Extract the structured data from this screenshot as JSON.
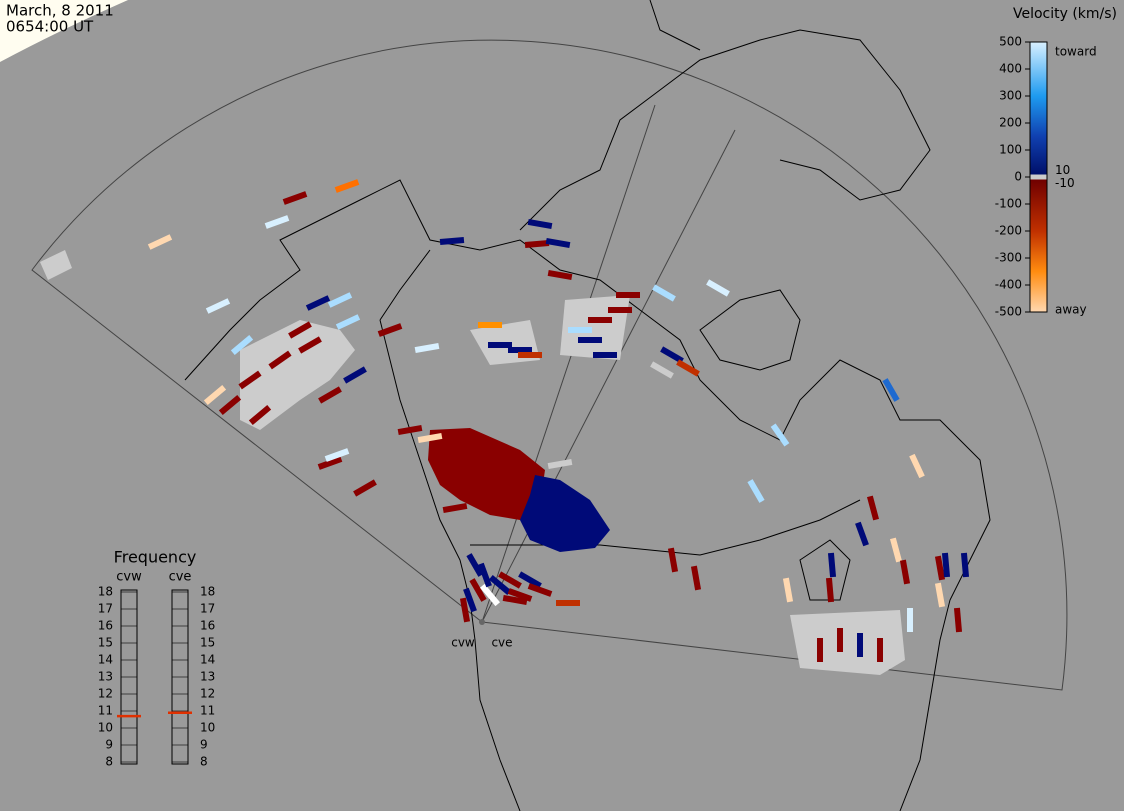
{
  "header": {
    "date": "March, 8 2011",
    "time": "0654:00 UT"
  },
  "velocity_scale": {
    "title": "Velocity (km/s)",
    "lim": [
      -500,
      500
    ],
    "ticks": [
      500,
      400,
      300,
      200,
      100,
      0,
      -100,
      -200,
      -300,
      -400,
      -500
    ],
    "inner_ticks": [
      10,
      -10
    ],
    "top_label": "toward",
    "bottom_label": "away"
  },
  "frequency": {
    "title": "Frequency",
    "lim": [
      8,
      18
    ],
    "ticks": [
      18,
      17,
      16,
      15,
      14,
      13,
      12,
      11,
      10,
      9,
      8
    ],
    "radars": [
      {
        "name": "cvw",
        "value": 10.7
      },
      {
        "name": "cve",
        "value": 10.9
      }
    ]
  },
  "radar_sites": [
    "cvw",
    "cve"
  ]
}
